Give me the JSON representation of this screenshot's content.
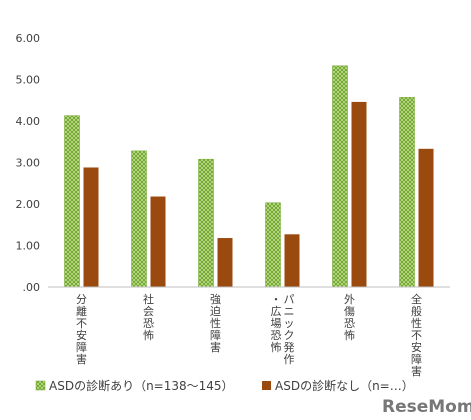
{
  "chart_data": {
    "type": "bar",
    "categories": [
      "分離不安障害",
      "社会恐怖",
      "強迫性障害",
      "パニック発作・広場恐怖",
      "外傷恐怖",
      "全般性不安障害"
    ],
    "category_lines": [
      [
        "分離不安障害"
      ],
      [
        "社会恐怖"
      ],
      [
        "強迫性障害"
      ],
      [
        "パニック発作",
        "・広場恐怖"
      ],
      [
        "外傷恐怖"
      ],
      [
        "全般性不安障害"
      ]
    ],
    "series": [
      {
        "name": "ASDの診断あり（n=138～145）",
        "values": [
          4.13,
          3.28,
          3.08,
          2.03,
          5.33,
          4.57
        ],
        "color": "#8ec63f",
        "pattern": "crosshatch"
      },
      {
        "name": "ASDの診断なし（n=…）",
        "values": [
          2.88,
          2.18,
          1.18,
          1.27,
          4.46,
          3.33
        ],
        "color": "#9a4a0f"
      }
    ],
    "yticks": [
      ".00",
      "1.00",
      "2.00",
      "3.00",
      "4.00",
      "5.00",
      "6.00"
    ],
    "ylim": [
      0,
      6
    ],
    "grid": false,
    "legend_position": "bottom"
  },
  "watermark": "ReseMom"
}
